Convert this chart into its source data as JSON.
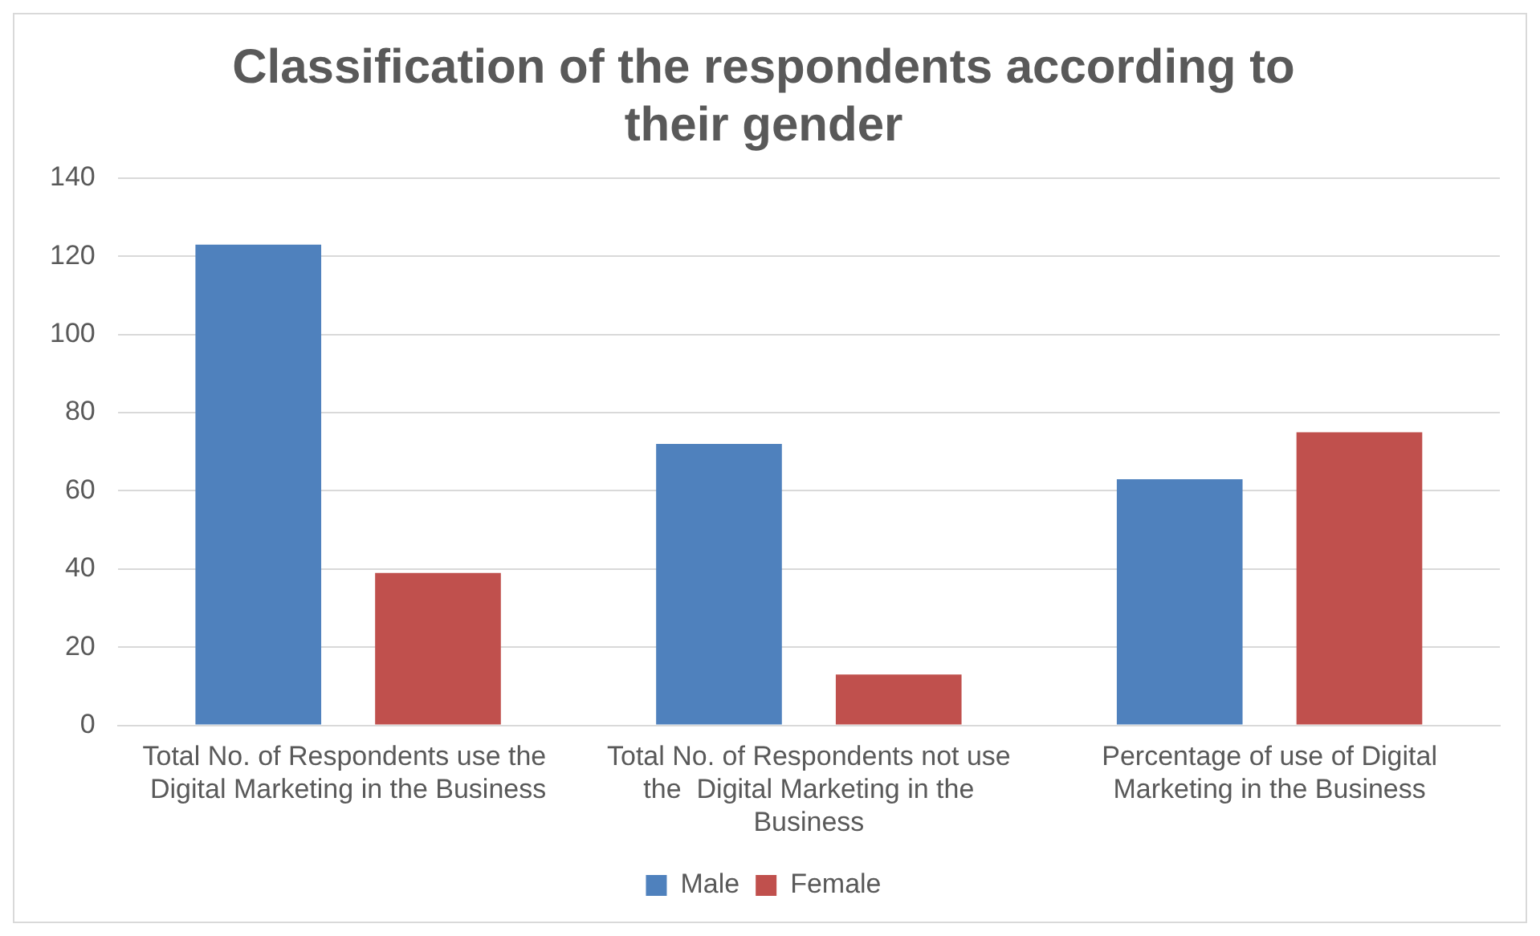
{
  "chart_data": {
    "type": "bar",
    "title": "Classification of the respondents according to their gender",
    "categories": [
      "Total No. of Respondents use the  Digital Marketing in the Business",
      "Total No. of Respondents not use the  Digital Marketing in the Business",
      "Percentage of use of Digital Marketing in the Business"
    ],
    "series": [
      {
        "name": "Male",
        "color": "#4f81bd",
        "values": [
          123,
          72,
          63
        ]
      },
      {
        "name": "Female",
        "color": "#c0504d",
        "values": [
          39,
          13,
          75
        ]
      }
    ],
    "ylim": [
      0,
      140
    ],
    "yticks": [
      0,
      20,
      40,
      60,
      80,
      100,
      120,
      140
    ],
    "grid": "y",
    "legend": "bottom"
  }
}
